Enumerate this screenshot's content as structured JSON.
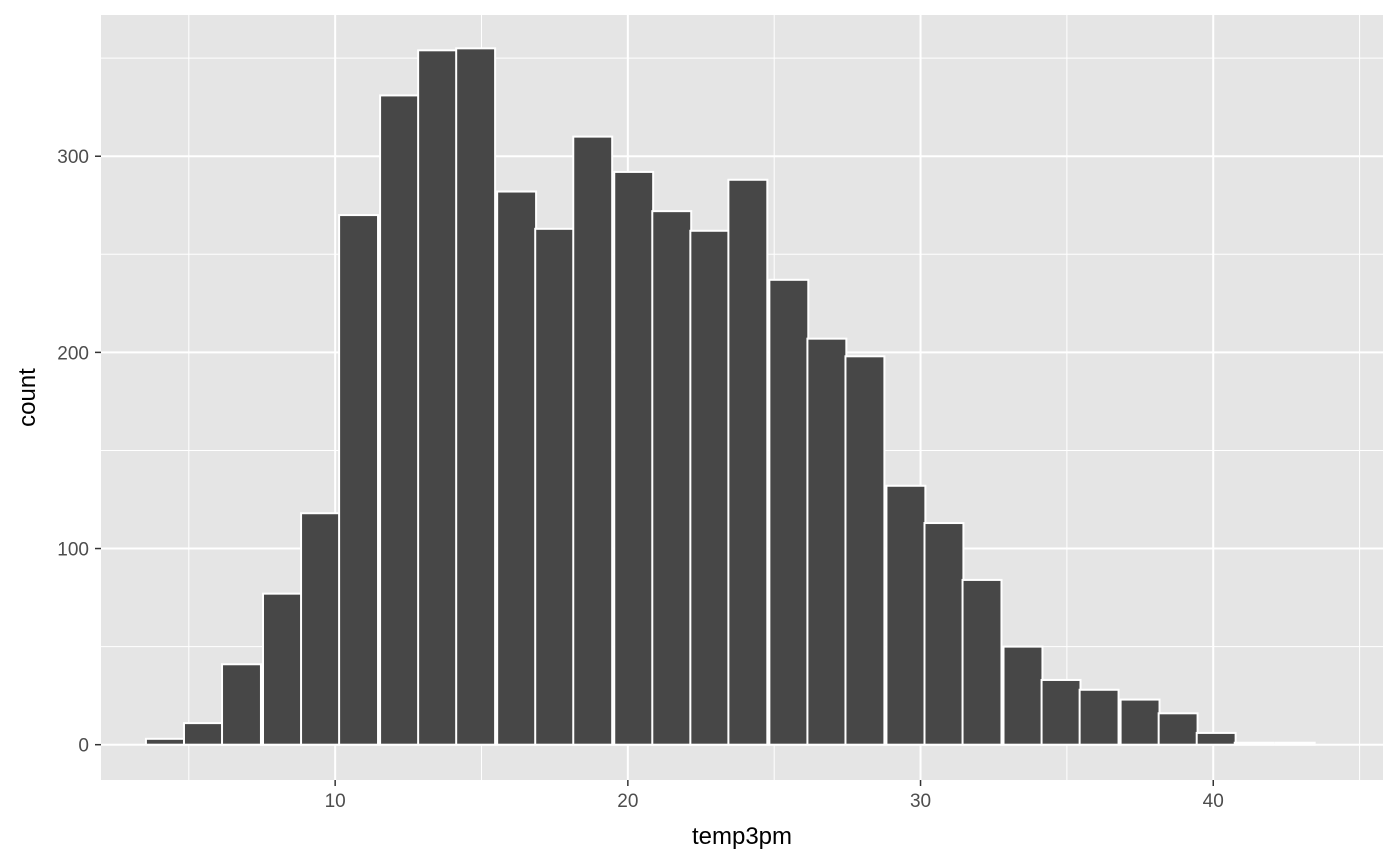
{
  "chart_data": {
    "type": "bar",
    "subtype": "histogram",
    "title": "",
    "xlabel": "temp3pm",
    "ylabel": "count",
    "xlim": [
      2.0,
      45.8
    ],
    "ylim": [
      -18,
      372
    ],
    "x_ticks": [
      10,
      20,
      30,
      40
    ],
    "y_ticks": [
      0,
      100,
      200,
      300
    ],
    "grid": true,
    "legend": "none",
    "colors": {
      "panel_background": "#e5e5e5",
      "grid_major": "#ffffff",
      "bar_fill": "#474747",
      "bar_outline": "#ffffff"
    },
    "bin_width": 1.33,
    "bins": [
      {
        "x": 4.2,
        "count": 3
      },
      {
        "x": 5.5,
        "count": 11
      },
      {
        "x": 6.8,
        "count": 41
      },
      {
        "x": 8.2,
        "count": 77
      },
      {
        "x": 9.5,
        "count": 118
      },
      {
        "x": 10.8,
        "count": 270
      },
      {
        "x": 12.2,
        "count": 331
      },
      {
        "x": 13.5,
        "count": 354
      },
      {
        "x": 14.8,
        "count": 355
      },
      {
        "x": 16.2,
        "count": 282
      },
      {
        "x": 17.5,
        "count": 263
      },
      {
        "x": 18.8,
        "count": 310
      },
      {
        "x": 20.2,
        "count": 292
      },
      {
        "x": 21.5,
        "count": 272
      },
      {
        "x": 22.8,
        "count": 262
      },
      {
        "x": 24.1,
        "count": 288
      },
      {
        "x": 25.5,
        "count": 237
      },
      {
        "x": 26.8,
        "count": 207
      },
      {
        "x": 28.1,
        "count": 198
      },
      {
        "x": 29.5,
        "count": 132
      },
      {
        "x": 30.8,
        "count": 113
      },
      {
        "x": 32.1,
        "count": 84
      },
      {
        "x": 33.5,
        "count": 50
      },
      {
        "x": 34.8,
        "count": 33
      },
      {
        "x": 36.1,
        "count": 28
      },
      {
        "x": 37.5,
        "count": 23
      },
      {
        "x": 38.8,
        "count": 16
      },
      {
        "x": 40.1,
        "count": 6
      },
      {
        "x": 41.4,
        "count": 1
      },
      {
        "x": 42.8,
        "count": 1
      }
    ]
  }
}
